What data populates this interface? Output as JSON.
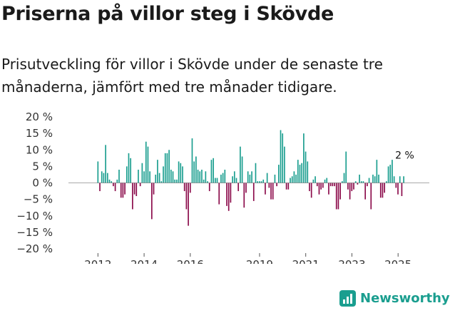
{
  "header": {
    "title": "Priserna på villor steg i Skövde",
    "subtitle": "Prisutveckling för villor i Skövde under de senaste tre månaderna, jämfört med tre månader tidigare."
  },
  "brand": {
    "name": "Newsworthy",
    "icon": "newsworthy-logo-icon",
    "color": "#1a9e8f"
  },
  "chart_data": {
    "type": "bar",
    "title": "Priserna på villor steg i Skövde",
    "xlabel": "",
    "ylabel": "",
    "ylim": [
      -20,
      20
    ],
    "yticks": [
      20,
      15,
      10,
      5,
      0,
      -5,
      -10,
      -15,
      -20
    ],
    "ytick_labels": [
      "20 %",
      "15 %",
      "10 %",
      "5 %",
      "0 %",
      "−5 %",
      "−10 %",
      "−15 %",
      "−20 %"
    ],
    "xtick_labels": [
      "2012",
      "2014",
      "2016",
      "2019",
      "2021",
      "2023",
      "2025"
    ],
    "xtick_positions": [
      2012,
      2014,
      2016,
      2019,
      2021,
      2023,
      2025
    ],
    "x_start": 2012.0,
    "x_step": 0.0833,
    "x_range": [
      2010.6,
      2026.6
    ],
    "colors": {
      "positive": "#1a9e8f",
      "negative": "#8b0a4a"
    },
    "end_label": "2 %",
    "grid": false,
    "legend": "none",
    "series": [
      {
        "name": "Prisutveckling",
        "values": [
          6.5,
          -2.5,
          3.5,
          3,
          11.5,
          3,
          1,
          0.5,
          -1,
          -2.5,
          1,
          4,
          -4.5,
          -4.5,
          -3.5,
          5,
          9,
          7.5,
          -8,
          -3.5,
          -4,
          4,
          -1,
          6,
          3.5,
          12.5,
          11,
          3.5,
          -11,
          -3.5,
          2.5,
          7,
          3,
          0.5,
          5,
          9,
          9,
          10,
          4,
          3.5,
          1,
          1,
          6.5,
          6,
          5,
          -2.5,
          -8,
          -13,
          -3,
          13.5,
          6.5,
          8,
          4,
          3.5,
          4,
          1,
          3.5,
          0.5,
          -2.5,
          7,
          7.5,
          1.5,
          1.5,
          -6.5,
          2.5,
          3,
          4,
          -7,
          -8.5,
          -6,
          2,
          3.5,
          1.5,
          -2.5,
          11,
          8,
          -7.5,
          -3,
          3.5,
          2.5,
          3.5,
          -5.5,
          6,
          0.5,
          0.5,
          0.5,
          1,
          -3.5,
          3,
          -1.5,
          -5,
          -5,
          2.5,
          -1,
          5.5,
          16,
          15,
          11,
          -2,
          -2,
          1.5,
          2,
          3.5,
          2.5,
          7,
          5.5,
          6,
          15,
          9.5,
          6.5,
          -2.5,
          -4.5,
          1,
          2,
          -1,
          -3.5,
          -2,
          -1.5,
          1,
          1.5,
          -3.5,
          -1,
          -1,
          -1,
          -8,
          -8,
          -5,
          0.5,
          3,
          9.5,
          -2,
          -5,
          -2.5,
          -2,
          0.5,
          -0.5,
          2.5,
          0.5,
          0.5,
          -5,
          -1,
          1.5,
          -8,
          2.5,
          2,
          7,
          2.5,
          -4.5,
          -4.5,
          -3,
          0.5,
          5,
          5.5,
          7,
          2,
          -1.5,
          -3.5,
          2,
          -4,
          2
        ]
      }
    ]
  }
}
